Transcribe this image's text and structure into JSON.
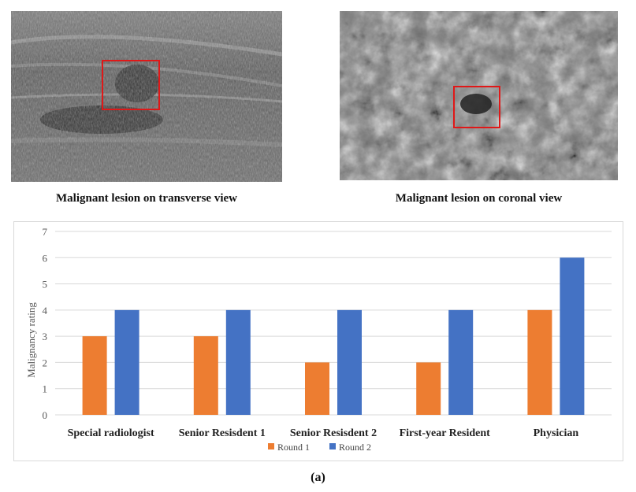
{
  "images": {
    "transverse_caption": "Malignant lesion on transverse view",
    "coronal_caption": "Malignant lesion on coronal view"
  },
  "figure_label": "(a)",
  "colors": {
    "round1": "#ED7D31",
    "round2": "#4472C4",
    "roi_box": "#E01818",
    "grid": "#D9D9D9"
  },
  "chart_data": {
    "type": "bar",
    "categories": [
      "Special radiologist",
      "Senior Resisdent 1",
      "Senior Resisdent 2",
      "First-year Resident",
      "Physician"
    ],
    "series": [
      {
        "name": "Round 1",
        "values": [
          3,
          3,
          2,
          2,
          4
        ]
      },
      {
        "name": "Round 2",
        "values": [
          4,
          4,
          4,
          4,
          6
        ]
      }
    ],
    "ylabel": "Malignancy  rating",
    "xlabel": "",
    "ylim": [
      0,
      7
    ],
    "yticks": [
      0,
      1,
      2,
      3,
      4,
      5,
      6,
      7
    ],
    "grid": true,
    "legend_position": "bottom"
  }
}
